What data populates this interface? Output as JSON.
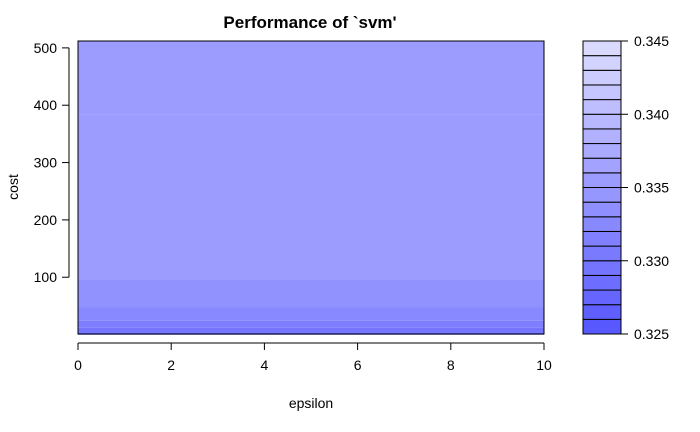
{
  "chart_data": {
    "type": "heatmap",
    "title": "Performance of `svm'",
    "xlabel": "epsilon",
    "ylabel": "cost",
    "xlim": [
      0,
      10
    ],
    "ylim": [
      1,
      512
    ],
    "x_ticks": [
      "0",
      "2",
      "4",
      "6",
      "8",
      "10"
    ],
    "y_ticks": [
      "100",
      "200",
      "300",
      "400",
      "500"
    ],
    "colorbar": {
      "min": 0.325,
      "max": 0.345,
      "ticks": [
        "0.325",
        "0.330",
        "0.335",
        "0.340",
        "0.345"
      ],
      "low_color": "#5555ff",
      "high_color": "#ddddff"
    },
    "cost_levels": [
      {
        "cost": 1,
        "error": 0.325
      },
      {
        "cost": 2,
        "error": 0.3265
      },
      {
        "cost": 4,
        "error": 0.328
      },
      {
        "cost": 8,
        "error": 0.3295
      },
      {
        "cost": 16,
        "error": 0.331
      },
      {
        "cost": 32,
        "error": 0.3325
      },
      {
        "cost": 64,
        "error": 0.334
      },
      {
        "cost": 128,
        "error": 0.3355
      },
      {
        "cost": 256,
        "error": 0.3355
      },
      {
        "cost": 512,
        "error": 0.3355
      }
    ]
  }
}
